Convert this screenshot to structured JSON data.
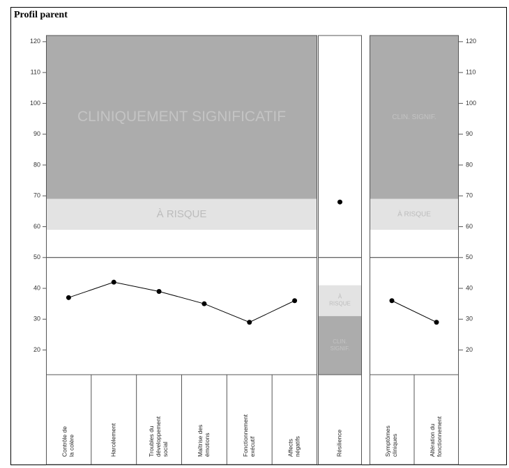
{
  "chart_data": {
    "type": "line",
    "title": "Profil parent",
    "ylim": [
      12,
      122
    ],
    "yticks": [
      20,
      30,
      40,
      50,
      60,
      70,
      80,
      90,
      100,
      110,
      120
    ],
    "reference_line": 50,
    "groups": [
      {
        "categories": [
          "Contrôle de la colère",
          "Harcèlement",
          "Troubles du développement social",
          "Maîtrise des émotions",
          "Fonctionnement exécutif",
          "Affects négatifs"
        ],
        "values": [
          37,
          42,
          39,
          35,
          29,
          36
        ],
        "zones": [
          {
            "label": "CLINIQUEMENT SIGNIFICATIF",
            "range": [
              69,
              122
            ],
            "color": "#acacac"
          },
          {
            "label": "À RISQUE",
            "range": [
              59,
              69
            ],
            "color": "#e3e3e3"
          }
        ]
      },
      {
        "categories": [
          "Résilience"
        ],
        "values": [
          68
        ],
        "zones": [
          {
            "label": "À RISQUE",
            "range": [
              31,
              41
            ],
            "color": "#e3e3e3"
          },
          {
            "label": "CLIN. SIGNIF.",
            "range": [
              12,
              31
            ],
            "color": "#acacac"
          }
        ]
      },
      {
        "categories": [
          "Symptômes cliniques",
          "Altération du fonctionnement"
        ],
        "values": [
          36,
          29
        ],
        "zones": [
          {
            "label": "CLIN. SIGNIF.",
            "range": [
              69,
              122
            ],
            "color": "#acacac"
          },
          {
            "label": "À RISQUE",
            "range": [
              59,
              69
            ],
            "color": "#e3e3e3"
          }
        ]
      }
    ]
  }
}
